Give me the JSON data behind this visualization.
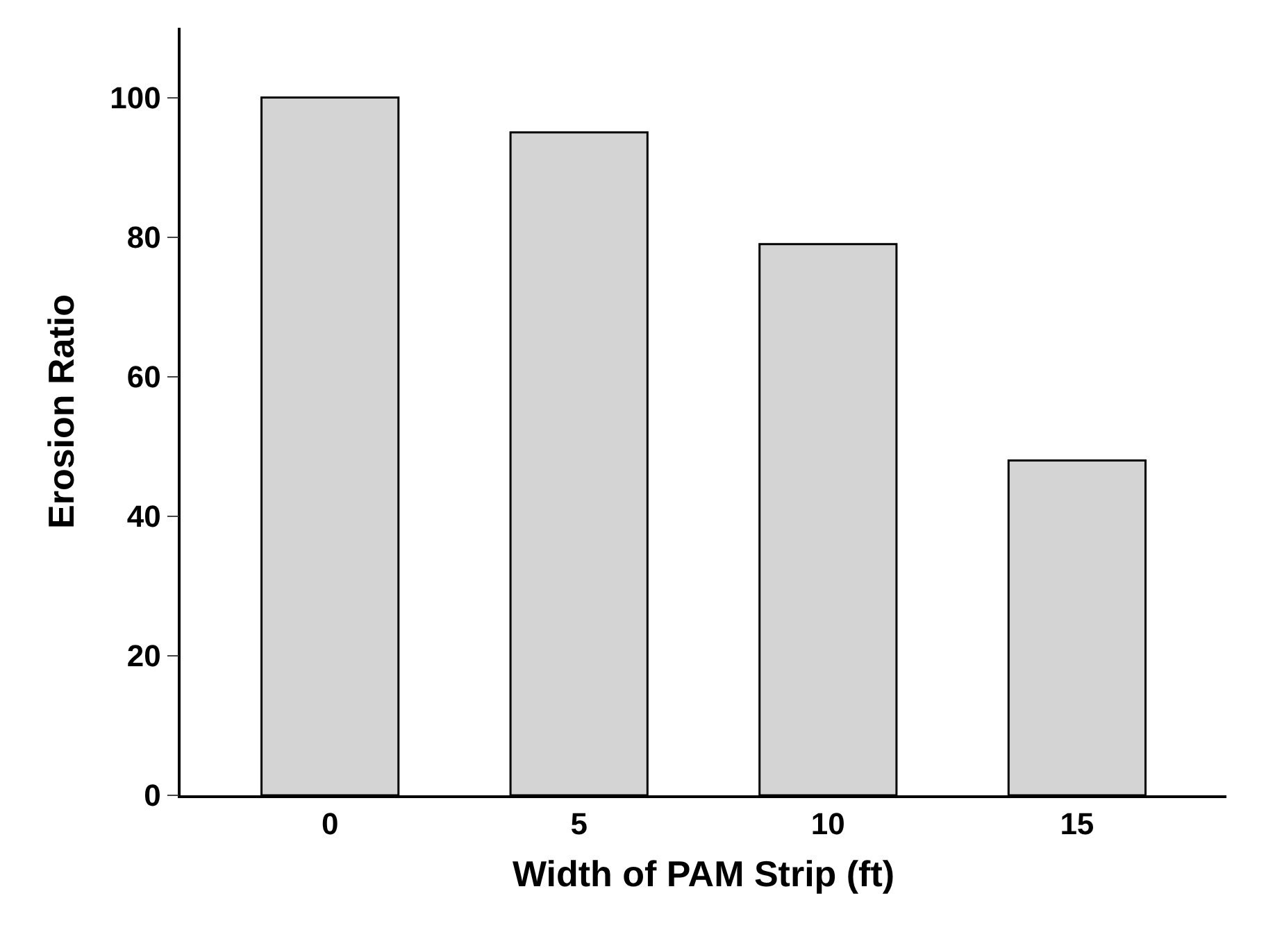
{
  "chart_data": {
    "type": "bar",
    "xlabel": "Width of PAM Strip (ft)",
    "ylabel": "Erosion Ratio",
    "categories": [
      "0",
      "5",
      "10",
      "15"
    ],
    "values": [
      100,
      95,
      79,
      48
    ],
    "color": "#d4d4d4",
    "ylim": [
      0,
      110
    ],
    "yticks": [
      0,
      20,
      40,
      60,
      80,
      100
    ]
  }
}
